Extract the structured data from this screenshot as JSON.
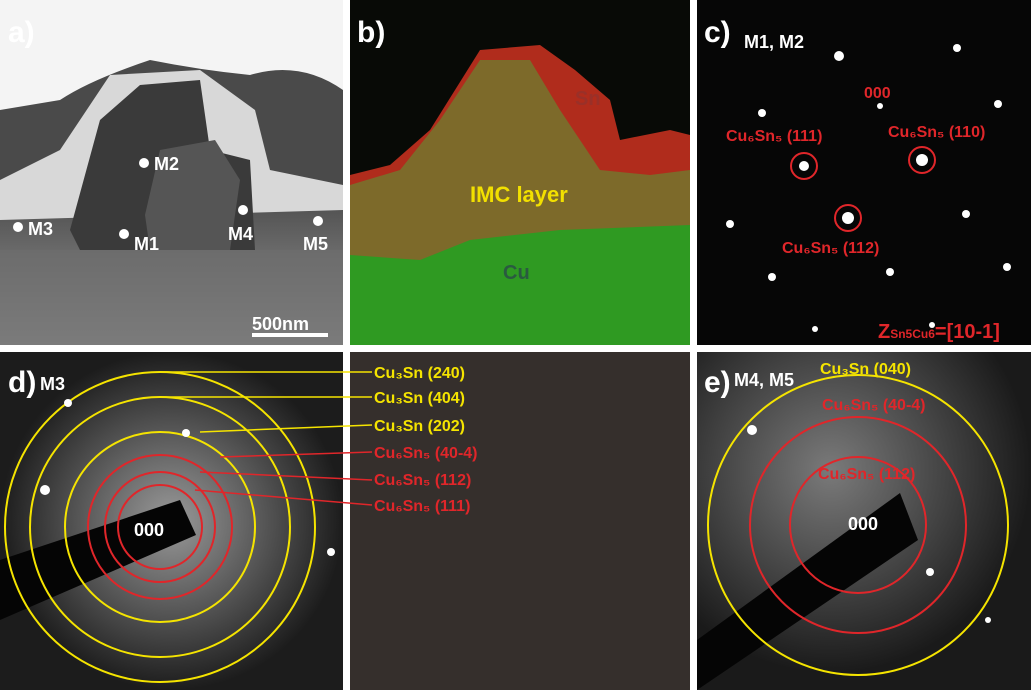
{
  "panels": {
    "a": {
      "label": "a)",
      "points": [
        "M1",
        "M2",
        "M3",
        "M4",
        "M5"
      ],
      "scale_bar": "500nm"
    },
    "b": {
      "label": "b)",
      "regions": [
        "Sn",
        "IMC layer",
        "Cu"
      ]
    },
    "c": {
      "label": "c)",
      "title": "M1, M2",
      "origin": "000",
      "spots": [
        "Cu₆Sn₅ (111)",
        "Cu₆Sn₅ (110)",
        "Cu₆Sn₅ (112)"
      ],
      "zone": {
        "main": "Z",
        "sub": "Sn5Cu6",
        "rest": "=[10-1]"
      }
    },
    "d": {
      "label": "d)",
      "title": "M3",
      "origin": "000",
      "rings": [
        "Cu₃Sn (240)",
        "Cu₃Sn (404)",
        "Cu₃Sn (202)",
        "Cu₆Sn₅ (40-4)",
        "Cu₆Sn₅ (112)",
        "Cu₆Sn₅ (111)"
      ]
    },
    "e": {
      "label": "e)",
      "title": "M4, M5",
      "origin": "000",
      "rings": [
        "Cu₃Sn (040)",
        "Cu₆Sn₅ (40-4)",
        "Cu₆Sn₅ (112)"
      ]
    }
  }
}
